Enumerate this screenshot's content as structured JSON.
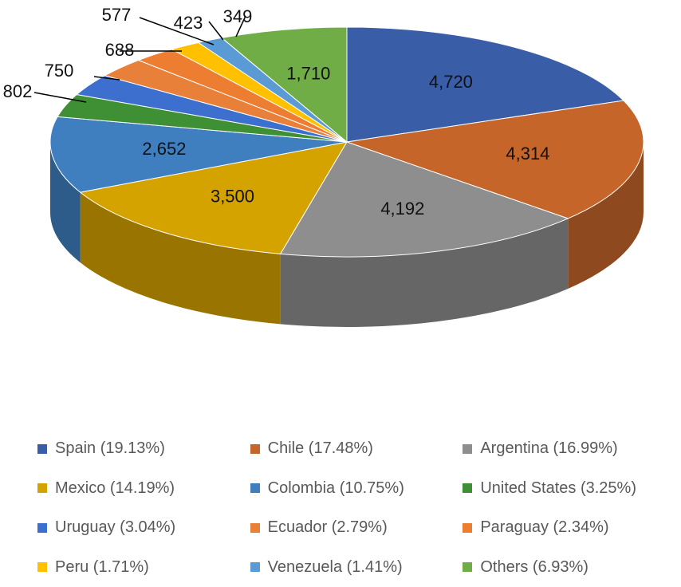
{
  "chart_data": {
    "type": "pie",
    "three_d": true,
    "title": "",
    "unit_labels": "values",
    "slices": [
      {
        "name": "Spain (19.13%)",
        "value": 4720,
        "label": "4,720",
        "color": "#3A5DA8"
      },
      {
        "name": "Chile (17.48%)",
        "value": 4314,
        "label": "4,314",
        "color": "#C5652A"
      },
      {
        "name": "Argentina (16.99%)",
        "value": 4192,
        "label": "4,192",
        "color": "#8E8E8E"
      },
      {
        "name": "Mexico (14.19%)",
        "value": 3500,
        "label": "3,500",
        "color": "#D4A300"
      },
      {
        "name": "Colombia (10.75%)",
        "value": 2652,
        "label": "2,652",
        "color": "#3F7FBF"
      },
      {
        "name": "United States (3.25%)",
        "value": 802,
        "label": "802",
        "color": "#3F8F35"
      },
      {
        "name": "Uruguay (3.04%)",
        "value": 750,
        "label": "750",
        "color": "#3D6FCF"
      },
      {
        "name": "Ecuador (2.79%)",
        "value": 688,
        "label": "688",
        "color": "#E8803A"
      },
      {
        "name": "Paraguay (2.34%)",
        "value": 577,
        "label": "577",
        "color": "#ED7D31"
      },
      {
        "name": "Peru (1.71%)",
        "value": 423,
        "label": "423",
        "color": "#FFC000"
      },
      {
        "name": "Venezuela (1.41%)",
        "value": 349,
        "label": "349",
        "color": "#5B9BD5"
      },
      {
        "name": "Others (6.93%)",
        "value": 1710,
        "label": "1,710",
        "color": "#70AD47"
      }
    ],
    "legend_position": "bottom"
  }
}
